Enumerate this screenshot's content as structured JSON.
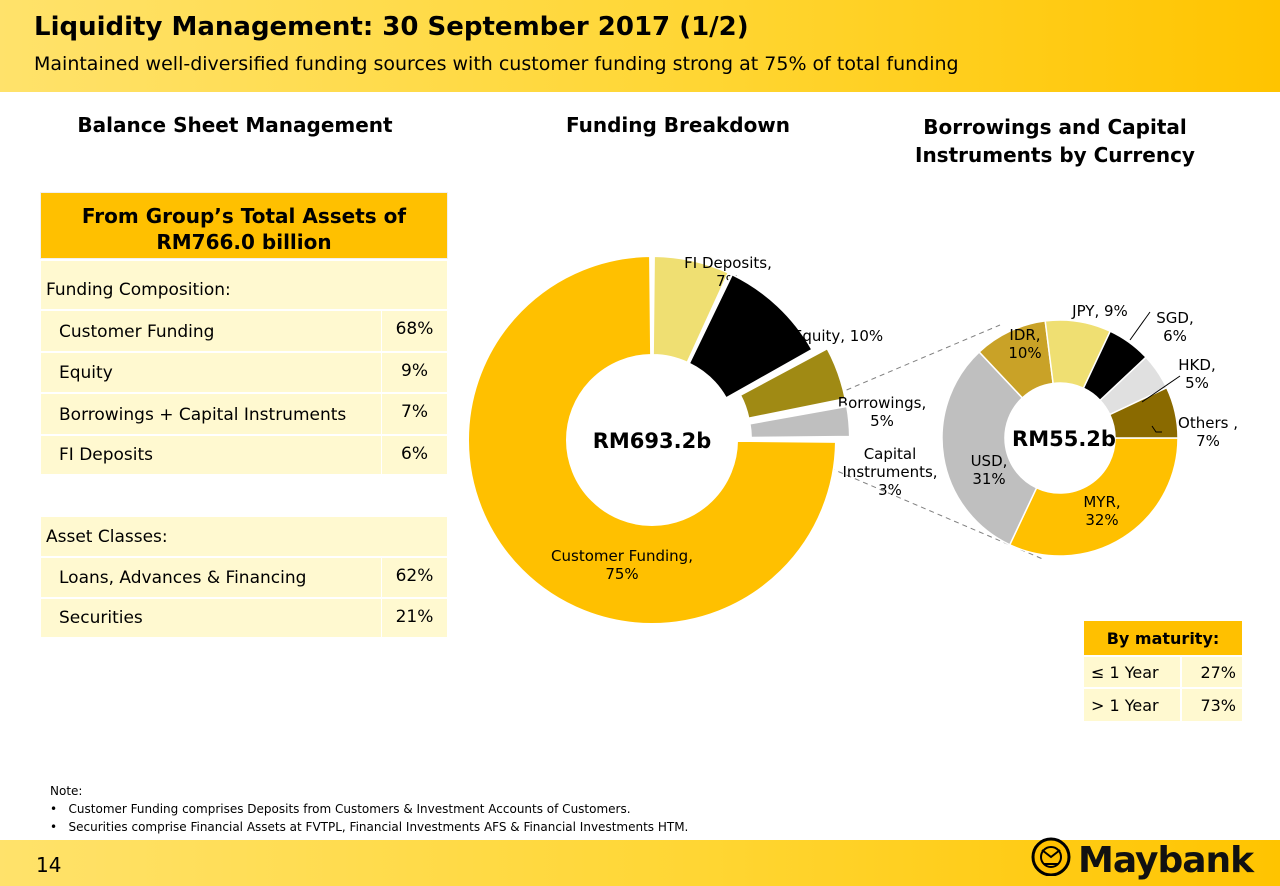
{
  "header": {
    "title": "Liquidity Management: 30 September 2017 (1/2)",
    "subtitle": "Maintained well-diversified funding sources with customer funding strong at 75% of total funding"
  },
  "sections": {
    "balance_sheet": "Balance Sheet Management",
    "funding_breakdown": "Funding Breakdown",
    "borrowings_line1": "Borrowings and Capital",
    "borrowings_line2": "Instruments by Currency"
  },
  "table": {
    "head_line1": "From Group’s Total Assets of",
    "head_line2": "RM766.0 billion",
    "funding_header": "Funding Composition:",
    "funding_rows": [
      {
        "label": "Customer Funding",
        "value": "68%"
      },
      {
        "label": "Equity",
        "value": "9%"
      },
      {
        "label": "Borrowings + Capital Instruments",
        "value": "7%"
      },
      {
        "label": "FI Deposits",
        "value": "6%"
      }
    ],
    "asset_header": "Asset Classes:",
    "asset_rows": [
      {
        "label": "Loans, Advances & Financing",
        "value": "62%"
      },
      {
        "label": "Securities",
        "value": "21%"
      }
    ]
  },
  "maturity": {
    "title": "By maturity:",
    "rows": [
      {
        "label": "≤ 1 Year",
        "value": "27%"
      },
      {
        "label": "> 1 Year",
        "value": "73%"
      }
    ]
  },
  "notes": {
    "title": "Note:",
    "items": [
      "Customer Funding comprises Deposits from Customers & Investment Accounts of Customers.",
      "Securities comprise Financial Assets at FVTPL, Financial Investments AFS & Financial Investments HTM."
    ]
  },
  "footer": {
    "page_number": "14",
    "logo_text": "Maybank"
  },
  "chart_data": [
    {
      "type": "pie",
      "center_label": "RM693.2b",
      "slices": [
        {
          "name": "Customer Funding",
          "value": 75,
          "label_lines": [
            "Customer Funding,",
            "75%"
          ],
          "color": "#ffc000"
        },
        {
          "name": "FI Deposits",
          "value": 7,
          "label_lines": [
            "FI Deposits,",
            "7%"
          ],
          "color": "#efdf72"
        },
        {
          "name": "Equity",
          "value": 10,
          "label_lines": [
            "Equity, 10%"
          ],
          "color": "#000000"
        },
        {
          "name": "Borrowings",
          "value": 5,
          "label_lines": [
            "Borrowings,",
            "5%"
          ],
          "color": "#a08a14"
        },
        {
          "name": "Capital Instruments",
          "value": 3,
          "label_lines": [
            "Capital",
            "Instruments,",
            "3%"
          ],
          "color": "#bfbfbf"
        }
      ]
    },
    {
      "type": "pie",
      "center_label": "RM55.2b",
      "slices": [
        {
          "name": "MYR",
          "value": 32,
          "label_lines": [
            "MYR,",
            "32%"
          ],
          "color": "#ffc000"
        },
        {
          "name": "USD",
          "value": 31,
          "label_lines": [
            "USD,",
            "31%"
          ],
          "color": "#bfbfbf"
        },
        {
          "name": "IDR",
          "value": 10,
          "label_lines": [
            "IDR,",
            "10%"
          ],
          "color": "#c9a227"
        },
        {
          "name": "JPY",
          "value": 9,
          "label_lines": [
            "JPY, 9%"
          ],
          "color": "#efdf72"
        },
        {
          "name": "SGD",
          "value": 6,
          "label_lines": [
            "SGD,",
            "6%"
          ],
          "color": "#000000"
        },
        {
          "name": "HKD",
          "value": 5,
          "label_lines": [
            "HKD,",
            "5%"
          ],
          "color": "#e0e0e0"
        },
        {
          "name": "Others",
          "value": 7,
          "label_lines": [
            "Others ,",
            "7%"
          ],
          "color": "#8a6a00"
        }
      ]
    }
  ]
}
